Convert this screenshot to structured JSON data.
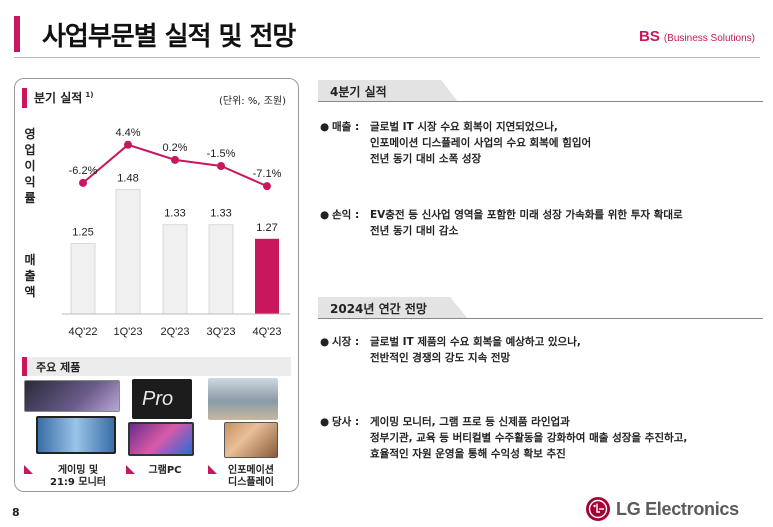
{
  "header": {
    "title": "사업부문별 실적 및 전망",
    "division_code": "BS",
    "division_name": "(Business Solutions)",
    "accent_color": "#c8175d"
  },
  "left": {
    "quarterly_label": "분기 실적",
    "quarterly_sup": "1)",
    "unit": "(단위: %, 조원)",
    "margin_label": "영업이익률",
    "sales_label": "매출액",
    "products_label": "주요 제품",
    "products": [
      {
        "name_line1": "게이밍 및",
        "name_line2": "21:9 모니터",
        "icon": "monitor-image"
      },
      {
        "name_line1": "그램PC",
        "name_line2": "",
        "icon": "laptop-image"
      },
      {
        "name_line1": "인포메이션",
        "name_line2": "디스플레이",
        "icon": "signage-image"
      }
    ]
  },
  "chart_data": {
    "type": "bar+line",
    "categories": [
      "4Q'22",
      "1Q'23",
      "2Q'23",
      "3Q'23",
      "4Q'23"
    ],
    "margin_labels": [
      "-6.2%",
      "4.4%",
      "0.2%",
      "-1.5%",
      "-7.1%"
    ],
    "margin_values": [
      -6.2,
      4.4,
      0.2,
      -1.5,
      -7.1
    ],
    "sales_values": [
      1.25,
      1.48,
      1.33,
      1.33,
      1.27
    ],
    "sales_labels": [
      "1.25",
      "1.48",
      "1.33",
      "1.33",
      "1.27"
    ],
    "highlight_index": 4,
    "colors": {
      "bar": "#f0f0f0",
      "bar_highlight": "#c8175d",
      "line": "#c8175d"
    }
  },
  "q4": {
    "title": "4분기 실적",
    "items": [
      {
        "key": "매출 :",
        "lines": [
          "글로벌 IT 시장 수요 회복이 지연되었으나,",
          "인포메이션 디스플레이 사업의 수요 회복에 힘입어",
          "전년 동기 대비 소폭 성장"
        ]
      },
      {
        "key": "손익 :",
        "lines": [
          "EV충전 등 신사업 영역을 포함한 미래 성장 가속화를 위한 투자 확대로",
          "전년 동기 대비 감소"
        ]
      }
    ]
  },
  "outlook": {
    "title": "2024년 연간 전망",
    "items": [
      {
        "key": "시장 :",
        "lines": [
          "글로벌 IT 제품의 수요 회복을 예상하고 있으나,",
          "전반적인 경쟁의 강도 지속 전망"
        ]
      },
      {
        "key": "당사 :",
        "lines": [
          "게이밍 모니터, 그램 프로 등 신제품 라인업과",
          "정부기관, 교육 등 버티컬별 수주활동을 강화하여 매출 성장을 추진하고,",
          "효율적인 자원 운영을 통해 수익성 확보 추진"
        ]
      }
    ]
  },
  "footer": {
    "page": "8",
    "logo_text": "LG Electronics"
  }
}
